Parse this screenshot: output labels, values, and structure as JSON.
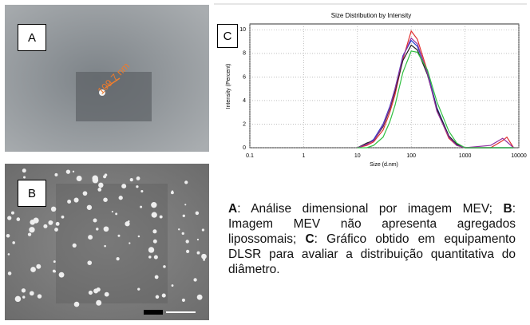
{
  "panels": {
    "a": {
      "label": "A",
      "annotation": "109.7 nm"
    },
    "b": {
      "label": "B"
    },
    "c": {
      "label": "C"
    }
  },
  "caption": [
    {
      "bold": "A",
      "text": ": Análise dimensional por imagem MEV;"
    },
    {
      "bold": "B",
      "text": ": Imagem MEV não apresenta agregados lipossomais;"
    },
    {
      "bold": "C",
      "text": ": Gráfico obtido em equipamento DLSR para avaliar a distribuição quantitativa do diâmetro."
    }
  ],
  "chart_data": {
    "type": "line",
    "title": "Size Distribution by Intensity",
    "x_label": "Size (d.nm)",
    "y_label": "Intensity (Percent)",
    "x_scale": "log",
    "xlim": [
      0.1,
      10000
    ],
    "xticks": [
      0.1,
      1,
      10,
      100,
      1000,
      10000
    ],
    "ylim": [
      0,
      10.5
    ],
    "yticks": [
      0,
      2,
      4,
      6,
      8,
      10
    ],
    "grid": true,
    "x": [
      10,
      15,
      20,
      30,
      40,
      50,
      70,
      100,
      130,
      200,
      300,
      500,
      700,
      1000,
      3000,
      5000,
      6000,
      8000
    ],
    "series": [
      {
        "color": "#e03030",
        "values": [
          0,
          0.2,
          0.5,
          1.5,
          3,
          4.5,
          7.5,
          9.9,
          9.2,
          6.5,
          3.2,
          0.8,
          0.2,
          0,
          0,
          0.6,
          0.9,
          0
        ]
      },
      {
        "color": "#2040d0",
        "values": [
          0,
          0.3,
          0.7,
          2,
          3.5,
          5,
          7.8,
          9.1,
          8.6,
          6.4,
          3.4,
          1,
          0.3,
          0,
          0,
          0,
          0,
          0
        ]
      },
      {
        "color": "#202020",
        "values": [
          0,
          0.4,
          0.6,
          1.8,
          3.3,
          4.8,
          7.4,
          8.7,
          8.3,
          6.2,
          3.3,
          1,
          0.3,
          0,
          0,
          0,
          0,
          0
        ]
      },
      {
        "color": "#9030a0",
        "values": [
          0,
          0.3,
          0.6,
          1.9,
          3.4,
          5,
          7.7,
          9.3,
          8.8,
          6.3,
          3.1,
          0.9,
          0.2,
          0,
          0.2,
          0.8,
          0.5,
          0
        ]
      },
      {
        "color": "#30c040",
        "values": [
          0,
          0,
          0.2,
          0.9,
          2.2,
          3.6,
          6.4,
          8.2,
          8.1,
          6.6,
          3.9,
          1.4,
          0.4,
          0,
          0,
          0,
          0,
          0
        ]
      }
    ]
  }
}
